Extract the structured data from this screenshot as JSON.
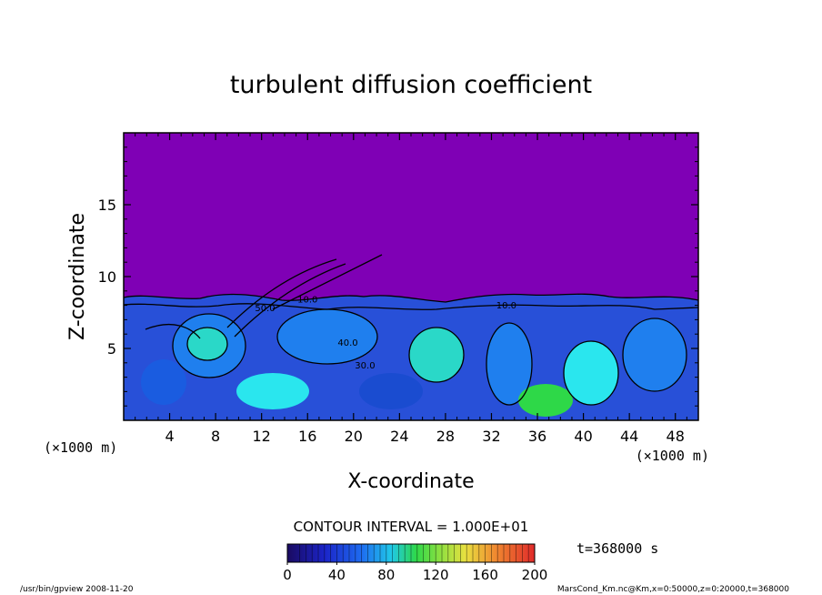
{
  "chart_data": {
    "type": "heatmap",
    "title": "turbulent diffusion coefficient",
    "xlabel": "X-coordinate",
    "ylabel": "Z-coordinate",
    "x_unit": "(×1000 m)",
    "z_unit": "(×1000 m)",
    "xlim": [
      0,
      50
    ],
    "zlim": [
      0,
      20
    ],
    "x_ticks": [
      4,
      8,
      12,
      16,
      20,
      24,
      28,
      32,
      36,
      40,
      44,
      48
    ],
    "z_ticks": [
      5,
      10,
      15
    ],
    "contour_interval_label": "CONTOUR INTERVAL = 1.000E+01",
    "contour_interval": 10,
    "colorbar": {
      "range": [
        0,
        200
      ],
      "tick_labels": [
        0,
        40,
        80,
        120,
        160,
        200
      ]
    },
    "time_label": "t=368000 s",
    "contour_labels": [
      {
        "x": 19.5,
        "z": 5.2,
        "text": "40.0"
      },
      {
        "x": 12.3,
        "z": 7.6,
        "text": "50.0"
      },
      {
        "x": 21.0,
        "z": 3.6,
        "text": "30.0"
      },
      {
        "x": 16.0,
        "z": 8.2,
        "text": "10.0"
      },
      {
        "x": 33.3,
        "z": 7.8,
        "text": "10.0"
      }
    ],
    "field_summary": "Uniform low values (about 0) above the turbulent boundary layer top near z = 8.5; turbulent eddies with values mostly 10-60 below, with peaks near 100 at the surface."
  },
  "footer": {
    "left": "/usr/bin/gpview   2008-11-20",
    "right": "MarsCond_Km.nc@Km,x=0:50000,z=0:20000,t=368000"
  },
  "colors": {
    "background_field": "#7f00b5",
    "low_blue": "#2e54dd",
    "mid_blue": "#1c7ef0",
    "cyan": "#29e6ee",
    "green": "#2ed848",
    "contour": "#000000"
  }
}
